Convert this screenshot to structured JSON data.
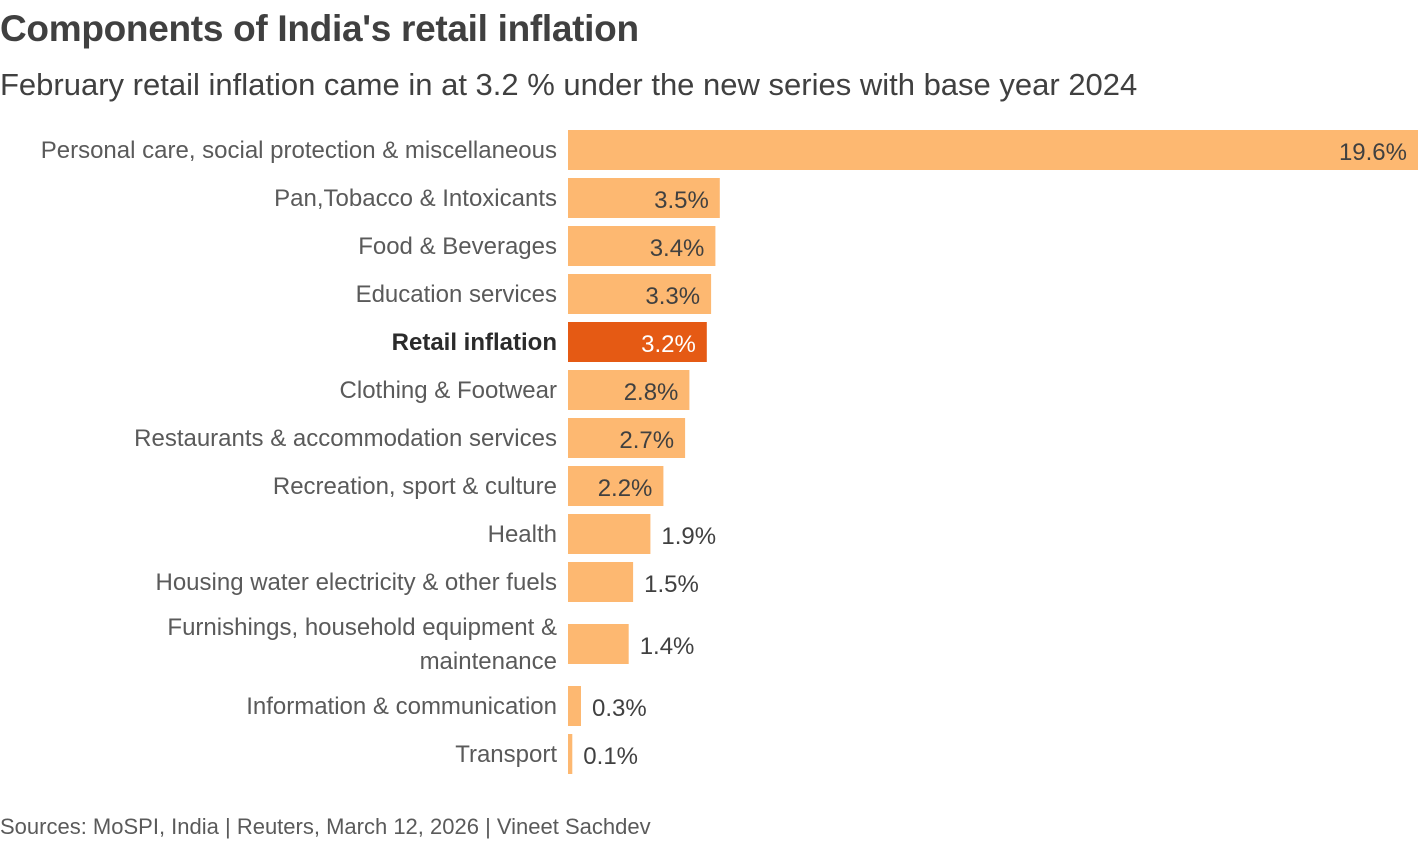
{
  "header": {
    "title": "Components of India's retail inflation",
    "subtitle": "February retail inflation came in at 3.2 % under the new series with base year 2024"
  },
  "footer": {
    "source": "Sources: MoSPI, India | Reuters, March 12, 2026 | Vineet Sachdev"
  },
  "colors": {
    "bar": "#FDB871",
    "highlight": "#E55A14"
  },
  "chart_data": {
    "type": "bar",
    "orientation": "horizontal",
    "title": "Components of India's retail inflation",
    "subtitle": "February retail inflation came in at 3.2 % under the new series with base year 2024",
    "xlim": [
      0,
      19.6
    ],
    "grid": false,
    "categories": [
      [
        "Personal care, social protection & miscellaneous"
      ],
      [
        "Pan,Tobacco & Intoxicants"
      ],
      [
        "Food & Beverages"
      ],
      [
        "Education services"
      ],
      [
        "Retail inflation"
      ],
      [
        "Clothing & Footwear"
      ],
      [
        "Restaurants & accommodation services"
      ],
      [
        "Recreation, sport & culture"
      ],
      [
        "Health"
      ],
      [
        "Housing water electricity & other fuels"
      ],
      [
        "Furnishings, household equipment &",
        "maintenance"
      ],
      [
        "Information & communication"
      ],
      [
        "Transport"
      ]
    ],
    "values": [
      19.6,
      3.5,
      3.4,
      3.3,
      3.2,
      2.8,
      2.7,
      2.2,
      1.9,
      1.5,
      1.4,
      0.3,
      0.1
    ],
    "value_labels": [
      "19.6%",
      "3.5%",
      "3.4%",
      "3.3%",
      "3.2%",
      "2.8%",
      "2.7%",
      "2.2%",
      "1.9%",
      "1.5%",
      "1.4%",
      "0.3%",
      "0.1%"
    ],
    "highlight": "Retail inflation"
  }
}
